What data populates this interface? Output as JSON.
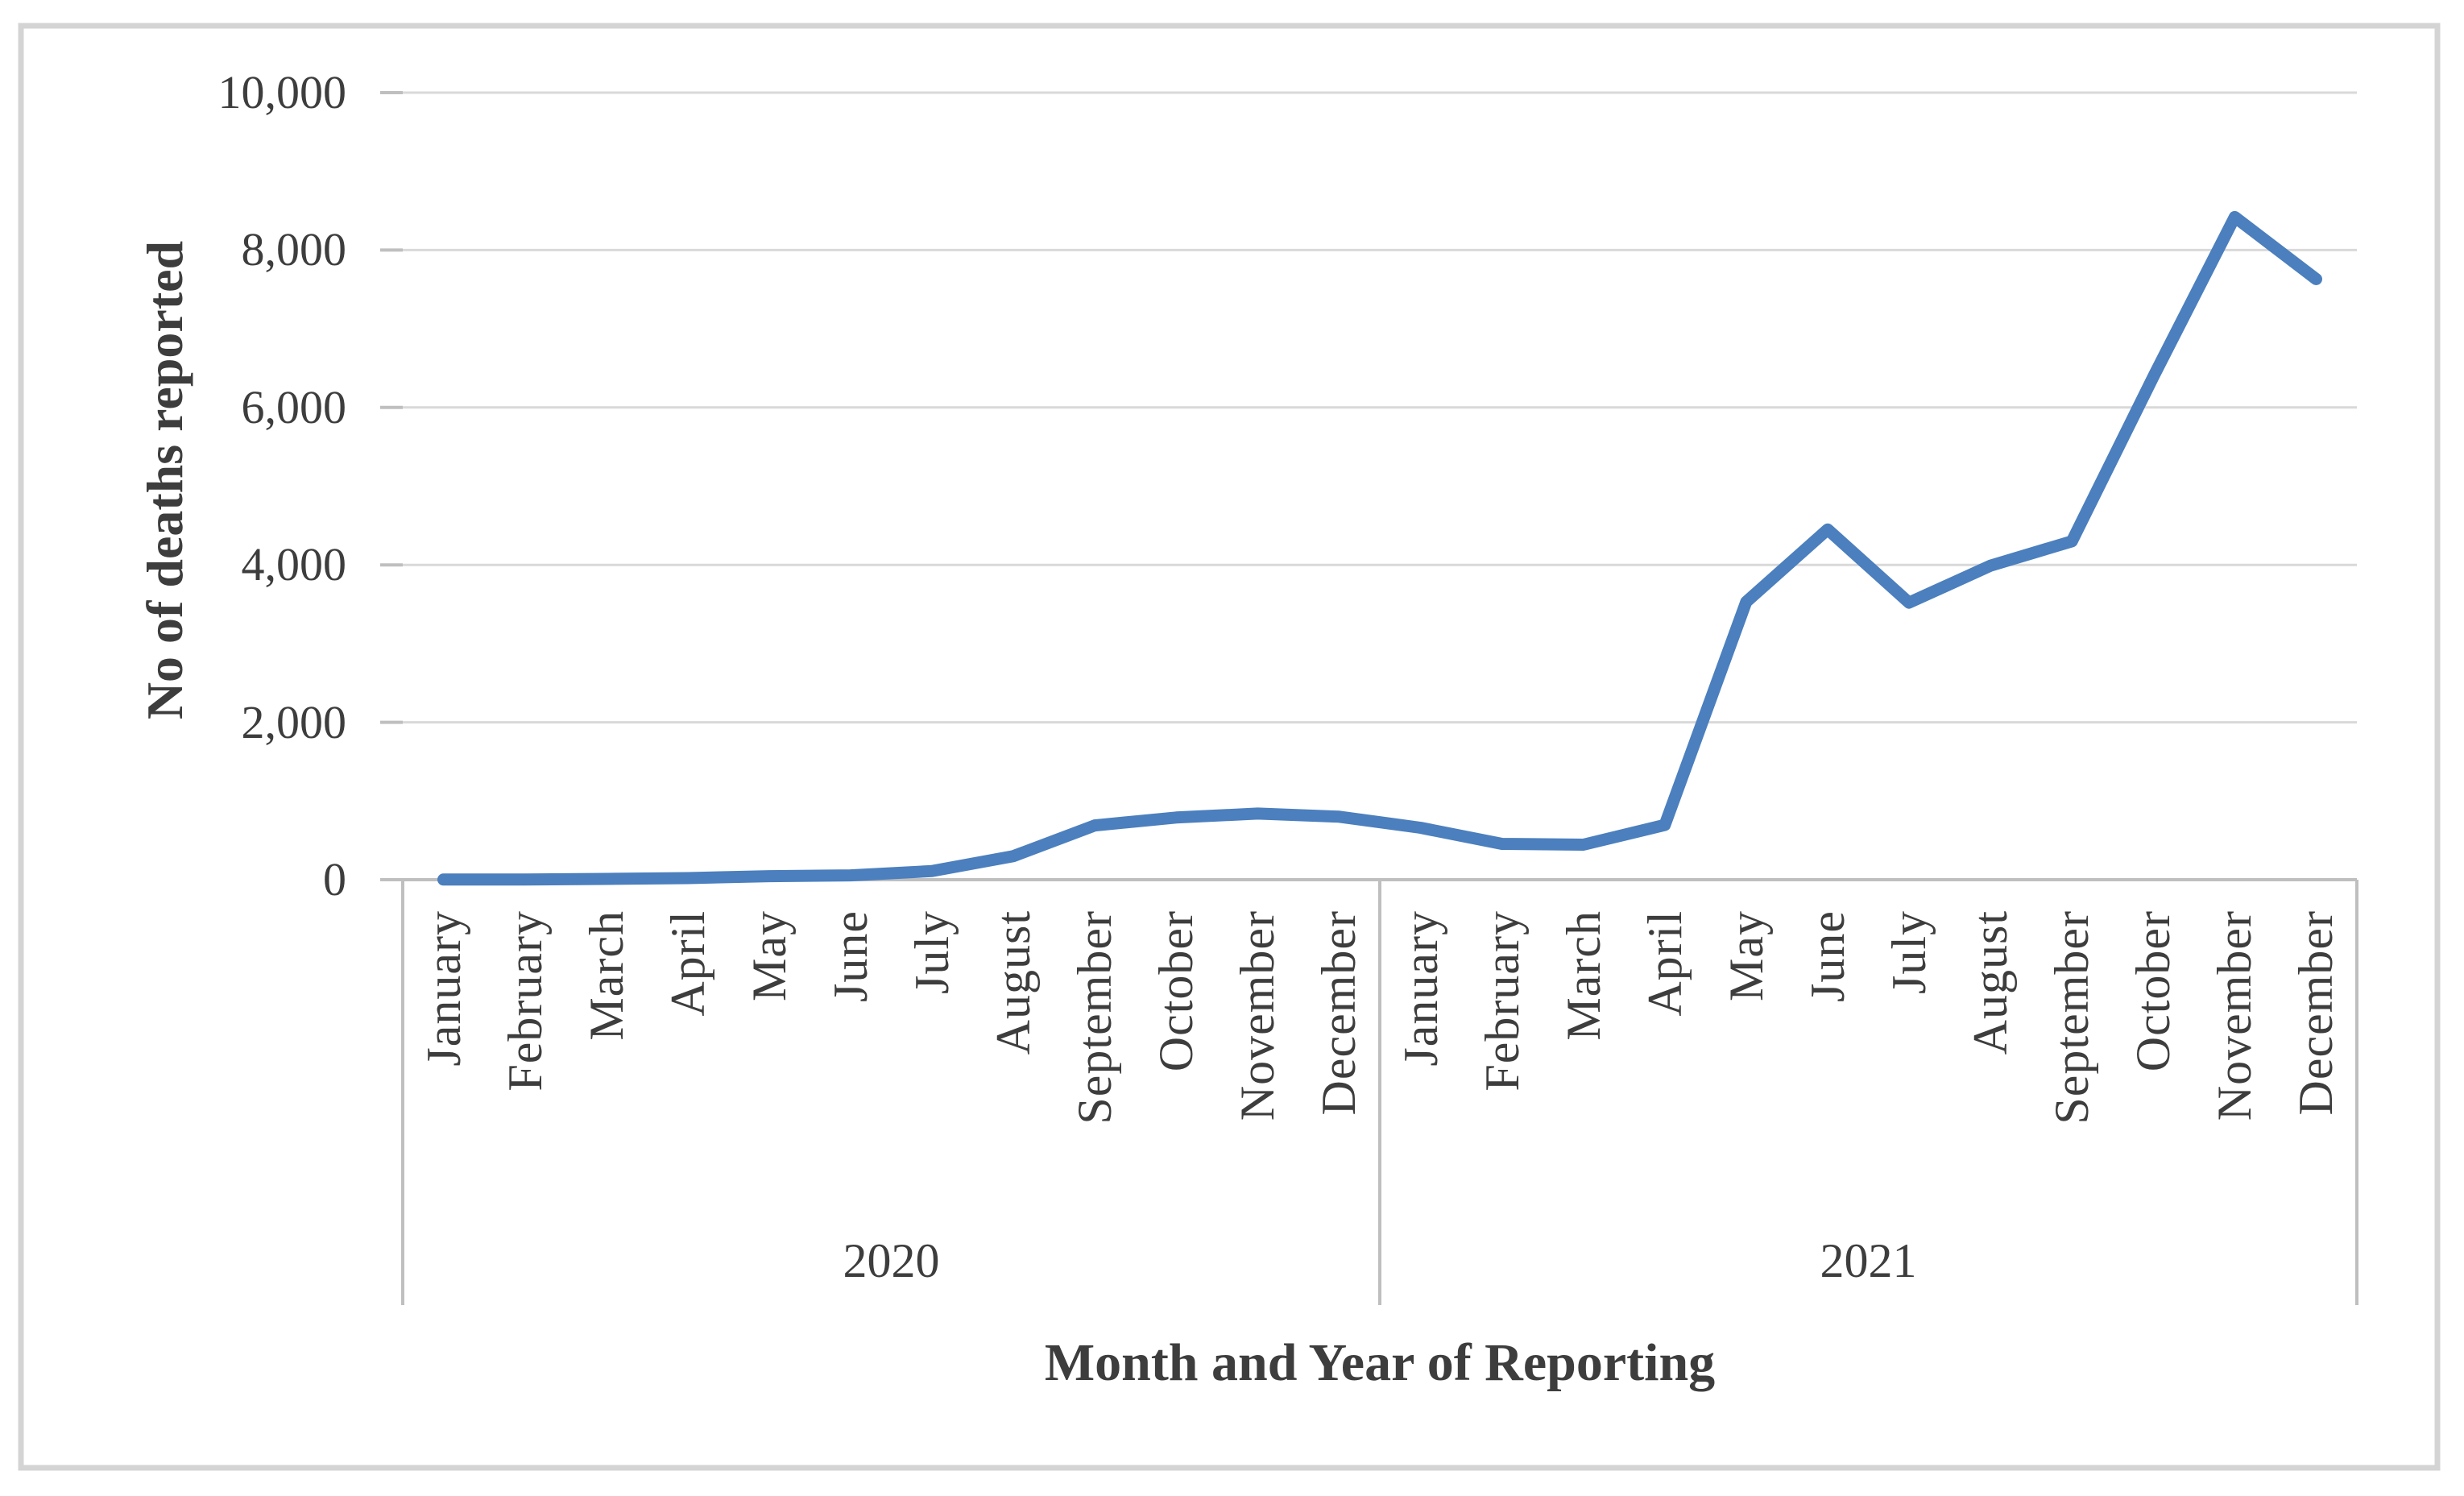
{
  "chart_data": {
    "type": "line",
    "title": "",
    "xlabel": "Month and Year of Reporting",
    "ylabel": "No of deaths reported",
    "ylim": [
      0,
      10000
    ],
    "ytick_step": 2000,
    "ytick_labels": [
      "0",
      "2,000",
      "4,000",
      "6,000",
      "8,000",
      "10,000"
    ],
    "grid": true,
    "legend_position": "none",
    "x_groups": [
      {
        "label": "2020",
        "months": [
          "January",
          "February",
          "March",
          "April",
          "May",
          "June",
          "July",
          "August",
          "September",
          "October",
          "November",
          "December"
        ],
        "values": [
          2,
          3,
          10,
          20,
          45,
          55,
          110,
          300,
          690,
          790,
          840,
          800
        ]
      },
      {
        "label": "2021",
        "months": [
          "January",
          "February",
          "March",
          "April",
          "May",
          "June",
          "July",
          "August",
          "September",
          "October",
          "November",
          "December"
        ],
        "values": [
          660,
          455,
          445,
          695,
          3530,
          4450,
          3520,
          3990,
          4300,
          6390,
          8420,
          7630
        ]
      }
    ],
    "series": [
      {
        "name": "No of deaths reported"
      }
    ]
  },
  "colors": {
    "line": "#4b7fbe",
    "gridline": "#d9d9d9",
    "axis": "#bfbfbf",
    "separator": "#bfbfbf",
    "text": "#3d3d3d",
    "figure_border": "#d4d4d4",
    "background": "#ffffff"
  }
}
